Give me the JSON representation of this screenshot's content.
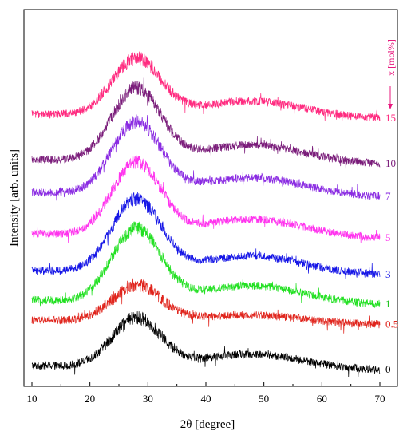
{
  "chart_data": {
    "type": "line",
    "title": "",
    "xlabel": "2θ [degree]",
    "ylabel": "Intensity [arb. units]",
    "xlim": [
      10,
      70
    ],
    "x_ticks": [
      10,
      20,
      30,
      40,
      50,
      60,
      70
    ],
    "legend_title": "x [mol%]",
    "legend_placement": "right",
    "grid": false,
    "y_ticks_shown": false,
    "series": [
      {
        "name": "0",
        "color": "#000000",
        "offset": 0,
        "peak": 60,
        "hump": 18,
        "noise": 5
      },
      {
        "name": "0.5",
        "color": "#e0241c",
        "offset": 57,
        "peak": 45,
        "hump": 10,
        "noise": 5
      },
      {
        "name": "1",
        "color": "#22e022",
        "offset": 82,
        "peak": 90,
        "hump": 22,
        "noise": 5
      },
      {
        "name": "3",
        "color": "#1414e6",
        "offset": 119,
        "peak": 90,
        "hump": 22,
        "noise": 5
      },
      {
        "name": "5",
        "color": "#ff33ee",
        "offset": 165,
        "peak": 90,
        "hump": 22,
        "noise": 5
      },
      {
        "name": "7",
        "color": "#8a2be2",
        "offset": 217,
        "peak": 88,
        "hump": 22,
        "noise": 5
      },
      {
        "name": "10",
        "color": "#7a1c7a",
        "offset": 258,
        "peak": 90,
        "hump": 22,
        "noise": 5
      },
      {
        "name": "15",
        "color": "#ff2a7f",
        "offset": 315,
        "peak": 70,
        "hump": 20,
        "noise": 5
      }
    ]
  }
}
